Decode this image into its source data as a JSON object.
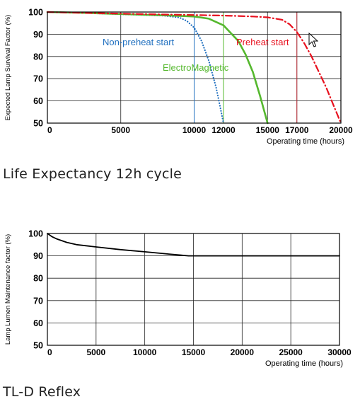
{
  "charts": [
    {
      "caption": "Life Expectancy 12h cycle",
      "ylabel": "Expected Lamp Survival Factor (%)",
      "xlabel": "Operating time (hours)"
    },
    {
      "caption": "TL-D Reflex",
      "ylabel": "Lamp Lumen Maintenance factor (%)",
      "xlabel": "Operating time (hours)"
    }
  ],
  "chart_data": [
    {
      "type": "line",
      "title": "",
      "xlabel": "Operating time (hours)",
      "ylabel": "Expected Lamp Survival Factor (%)",
      "xlim": [
        0,
        20000
      ],
      "ylim": [
        50,
        100
      ],
      "x_ticks": [
        0,
        5000,
        10000,
        12000,
        15000,
        17000,
        20000
      ],
      "y_ticks": [
        50,
        60,
        70,
        80,
        90,
        100
      ],
      "grid": true,
      "series": [
        {
          "name": "Non-preheat start",
          "color": "#1f6fbf",
          "style": "dotted",
          "x": [
            0,
            2000,
            4000,
            6000,
            8000,
            9000,
            9500,
            10000,
            10500,
            11000,
            11500,
            12000
          ],
          "y": [
            100,
            99.7,
            99.2,
            98.8,
            98.3,
            97.5,
            96,
            93,
            87,
            78,
            66,
            50
          ]
        },
        {
          "name": "ElectroMagnetic",
          "color": "#55b82e",
          "style": "solid",
          "x": [
            0,
            2000,
            4000,
            6000,
            8000,
            10000,
            11000,
            12000,
            13000,
            13500,
            14000,
            14500,
            15000
          ],
          "y": [
            100,
            99.7,
            99.3,
            98.9,
            98.5,
            98,
            97,
            94,
            87,
            81,
            73,
            62,
            50
          ]
        },
        {
          "name": "Preheat start",
          "color": "#e8101e",
          "style": "dashdot",
          "x": [
            0,
            4000,
            8000,
            12000,
            14000,
            15000,
            16000,
            16500,
            17000,
            17500,
            18000,
            18500,
            19000,
            19500,
            20000
          ],
          "y": [
            100,
            99.4,
            98.9,
            98.4,
            98,
            97.6,
            96.5,
            94.5,
            91,
            86,
            80,
            73,
            66,
            58,
            50
          ]
        }
      ],
      "annotations": [
        {
          "text": "Non-preheat start",
          "color": "#1f6fbf"
        },
        {
          "text": "ElectroMagnetic",
          "color": "#55b82e"
        },
        {
          "text": "Preheat start",
          "color": "#e8101e"
        }
      ],
      "markers": [
        {
          "x": 10000,
          "color": "#1f6fbf"
        },
        {
          "x": 12000,
          "color": "#55b82e"
        },
        {
          "x": 17000,
          "color": "#c0303a"
        }
      ]
    },
    {
      "type": "line",
      "title": "",
      "xlabel": "Operating time (hours)",
      "ylabel": "Lamp Lumen Maintenance factor (%)",
      "xlim": [
        0,
        30000
      ],
      "ylim": [
        50,
        100
      ],
      "x_ticks": [
        0,
        5000,
        10000,
        15000,
        20000,
        25000,
        30000
      ],
      "y_ticks": [
        50,
        60,
        70,
        80,
        90,
        100
      ],
      "grid": true,
      "series": [
        {
          "color": "#000000",
          "style": "solid",
          "x": [
            0,
            500,
            1000,
            2000,
            3000,
            5000,
            7500,
            10000,
            12500,
            14500,
            15000,
            20000,
            25000,
            30000
          ],
          "y": [
            100,
            98.5,
            97.5,
            96,
            95,
            94,
            92.8,
            91.8,
            90.8,
            90,
            90,
            90,
            90,
            90
          ]
        }
      ]
    }
  ]
}
